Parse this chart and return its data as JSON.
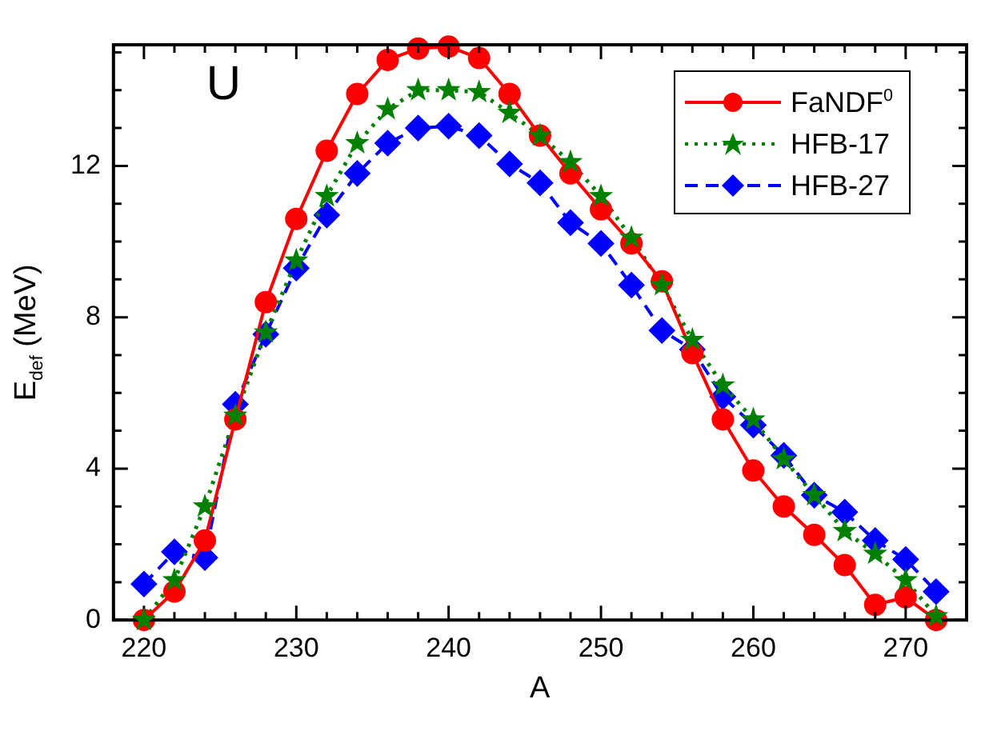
{
  "chart_data": {
    "type": "line",
    "xlabel": "A",
    "ylabel": "E$_{def}$ (MeV)",
    "annotations": [
      "U"
    ],
    "x": [
      220,
      222,
      224,
      226,
      228,
      230,
      232,
      234,
      236,
      238,
      240,
      242,
      244,
      246,
      248,
      250,
      252,
      254,
      256,
      258,
      260,
      262,
      264,
      266,
      268,
      270,
      272
    ],
    "series": [
      {
        "name": "FaNDF$^{0}$",
        "color": "#ff0000",
        "marker": "circle",
        "line_style": "solid",
        "values": [
          0,
          0.75,
          2.1,
          5.3,
          8.4,
          10.6,
          12.4,
          13.9,
          14.8,
          15.1,
          15.15,
          14.85,
          13.9,
          12.8,
          11.8,
          10.85,
          9.95,
          8.95,
          7.05,
          5.3,
          3.95,
          3.0,
          2.25,
          1.45,
          0.4,
          0.6,
          0
        ]
      },
      {
        "name": "HFB-17",
        "color": "#008000",
        "marker": "star",
        "line_style": "dotted",
        "values": [
          0,
          1.05,
          3.0,
          5.4,
          7.6,
          9.5,
          11.2,
          12.6,
          13.5,
          14.0,
          14.0,
          13.95,
          13.4,
          12.8,
          12.1,
          11.2,
          10.1,
          8.85,
          7.4,
          6.2,
          5.3,
          4.25,
          3.3,
          2.35,
          1.75,
          1.05,
          0.1
        ]
      },
      {
        "name": "HFB-27",
        "color": "#0000ff",
        "marker": "diamond",
        "line_style": "dashed",
        "values": [
          0.95,
          1.8,
          1.65,
          5.7,
          7.55,
          9.3,
          10.7,
          11.8,
          12.6,
          13.0,
          13.05,
          12.8,
          12.05,
          11.55,
          10.5,
          9.95,
          8.85,
          7.65,
          7.15,
          5.9,
          5.15,
          4.35,
          3.3,
          2.85,
          2.1,
          1.6,
          0.75
        ]
      }
    ],
    "xlim": [
      218,
      274
    ],
    "ylim": [
      0,
      15.2
    ],
    "xticks": [
      {
        "value": 218,
        "label": null
      },
      220,
      {
        "value": 222,
        "label": null
      },
      {
        "value": 224,
        "label": null
      },
      {
        "value": 226,
        "label": null
      },
      {
        "value": 228,
        "label": null
      },
      230,
      {
        "value": 232,
        "label": null
      },
      {
        "value": 234,
        "label": null
      },
      {
        "value": 236,
        "label": null
      },
      {
        "value": 238,
        "label": null
      },
      240,
      {
        "value": 242,
        "label": null
      },
      {
        "value": 244,
        "label": null
      },
      {
        "value": 246,
        "label": null
      },
      {
        "value": 248,
        "label": null
      },
      250,
      {
        "value": 252,
        "label": null
      },
      {
        "value": 254,
        "label": null
      },
      {
        "value": 256,
        "label": null
      },
      {
        "value": 258,
        "label": null
      },
      260,
      {
        "value": 262,
        "label": null
      },
      {
        "value": 264,
        "label": null
      },
      {
        "value": 266,
        "label": null
      },
      {
        "value": 268,
        "label": null
      },
      270,
      {
        "value": 272,
        "label": null
      }
    ],
    "yticks": [
      0,
      {
        "value": 1,
        "label": null
      },
      {
        "value": 2,
        "label": null
      },
      {
        "value": 3,
        "label": null
      },
      4,
      {
        "value": 5,
        "label": null
      },
      {
        "value": 6,
        "label": null
      },
      {
        "value": 7,
        "label": null
      },
      8,
      {
        "value": 9,
        "label": null
      },
      {
        "value": 10,
        "label": null
      },
      {
        "value": 11,
        "label": null
      },
      12,
      {
        "value": 13,
        "label": null
      },
      {
        "value": 14,
        "label": null
      },
      {
        "value": 15,
        "label": null
      }
    ],
    "grid": false,
    "legend": "top right"
  }
}
